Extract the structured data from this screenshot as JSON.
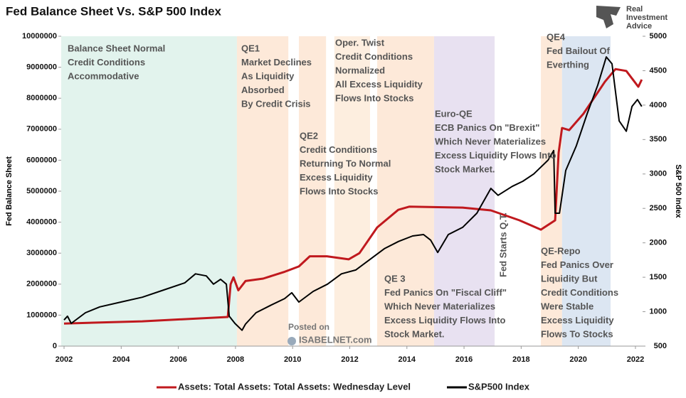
{
  "chart_data": {
    "type": "line",
    "title": "Fed Balance Sheet Vs. S&P 500 Index",
    "logo": [
      "Real",
      "Investment",
      "Advice"
    ],
    "watermark": [
      "Posted on",
      "ISABELNET.com"
    ],
    "ylabel": "Fed Balance Sheet",
    "y2label": "S&P 500 Index",
    "xlim": [
      2001.9,
      2022.25
    ],
    "xticks": [
      2002,
      2004,
      2006,
      2008,
      2010,
      2012,
      2014,
      2016,
      2018,
      2020,
      2022
    ],
    "ylim": [
      0,
      10000000
    ],
    "yticks": [
      0,
      1000000,
      2000000,
      3000000,
      4000000,
      5000000,
      6000000,
      7000000,
      8000000,
      9000000,
      10000000
    ],
    "y2lim": [
      500,
      5000
    ],
    "y2ticks": [
      500,
      1000,
      1500,
      2000,
      2500,
      3000,
      3500,
      4000,
      4500,
      5000
    ],
    "legend": "bottom",
    "regions": [
      {
        "start": 2001.9,
        "end": 2008.05,
        "color": "#e2f3ed"
      },
      {
        "start": 2008.05,
        "end": 2009.85,
        "color": "#fde9d9"
      },
      {
        "start": 2010.22,
        "end": 2011.17,
        "color": "#fde9d9"
      },
      {
        "start": 2011.46,
        "end": 2012.71,
        "color": "#fdeedf"
      },
      {
        "start": 2012.96,
        "end": 2014.95,
        "color": "#fde9d9"
      },
      {
        "start": 2014.95,
        "end": 2017.07,
        "color": "#e8e1f1"
      },
      {
        "start": 2018.69,
        "end": 2019.43,
        "color": "#fde9d9"
      },
      {
        "start": 2019.43,
        "end": 2021.13,
        "color": "#dce6f2"
      }
    ],
    "annotations": [
      [
        "Balance Sheet Normal",
        "Credit Conditions",
        "Accommodative"
      ],
      [
        "QE1",
        "Market Declines",
        "As Liquidity",
        "Absorbed",
        "By Credit Crisis"
      ],
      [
        "QE2",
        "Credit Conditions",
        "Returning To Normal",
        "Excess Liquidity",
        "Flows Into Stocks"
      ],
      [
        "Oper. Twist",
        "Credit Conditions",
        "Normalized",
        "All Excess Liquidity",
        "Flows Into Stocks"
      ],
      [
        "Euro-QE",
        "ECB Panics On \"Brexit\"",
        "Which Never Materializes",
        "Excess Liquidity Flows Into",
        "Stock Market."
      ],
      [
        "QE 3",
        "Fed Panics On \"Fiscal Cliff\"",
        "Which Never Materializes",
        "Excess Liquidity Flows Into",
        "Stock Market."
      ],
      [
        "QE4",
        "Fed Bailout Of",
        "Everthing"
      ],
      [
        "QE-Repo",
        "Fed Panics Over",
        "Liquidity But",
        "Credit Conditions",
        "Were Stable",
        "Excess Liquidity",
        "Flows To Stocks"
      ]
    ],
    "vertical_note": "Fed Starts Q.T.",
    "series": [
      {
        "name": "Assets: Total Assets: Total Assets: Wednesday Level",
        "color": "#c0191e",
        "axis": "y",
        "x": [
          2002,
          2004.74,
          2007.73,
          2007.83,
          2007.93,
          2008.1,
          2008.35,
          2008.97,
          2009.72,
          2010.22,
          2010.6,
          2011.2,
          2011.96,
          2012.34,
          2012.96,
          2013.7,
          2014.08,
          2015.95,
          2016.94,
          2017.94,
          2018.69,
          2019.19,
          2019.31,
          2019.43,
          2019.68,
          2020.18,
          2020.93,
          2021.3,
          2021.68,
          2022.1,
          2022.22
        ],
        "values": [
          730000,
          800000,
          940000,
          2000000,
          2220000,
          1800000,
          2100000,
          2180000,
          2400000,
          2570000,
          2900000,
          2900000,
          2800000,
          3000000,
          3830000,
          4400000,
          4500000,
          4470000,
          4380000,
          4060000,
          3760000,
          4060000,
          6240000,
          7040000,
          6970000,
          7500000,
          8530000,
          8940000,
          8880000,
          8370000,
          8600000
        ]
      },
      {
        "name": "S&P500 Index",
        "color": "#000000",
        "axis": "y2",
        "x": [
          2002,
          2002.12,
          2002.25,
          2002.75,
          2003.25,
          2003.99,
          2004.74,
          2005.49,
          2006.23,
          2006.6,
          2006.98,
          2007.23,
          2007.48,
          2007.68,
          2007.78,
          2007.98,
          2008.23,
          2008.35,
          2008.72,
          2009.22,
          2009.72,
          2009.97,
          2010.22,
          2010.72,
          2011.22,
          2011.71,
          2012.21,
          2012.71,
          2013.21,
          2013.71,
          2014.2,
          2014.58,
          2014.83,
          2015.08,
          2015.45,
          2015.95,
          2016.45,
          2016.94,
          2017.19,
          2017.69,
          2018.06,
          2018.44,
          2018.94,
          2019.14,
          2019.19,
          2019.34,
          2019.56,
          2019.93,
          2020.31,
          2020.68,
          2020.98,
          2021.18,
          2021.43,
          2021.68,
          2021.88,
          2022.07,
          2022.22
        ],
        "values": [
          880,
          935,
          830,
          985,
          1070,
          1140,
          1210,
          1315,
          1420,
          1550,
          1520,
          1400,
          1470,
          1400,
          935,
          830,
          730,
          820,
          985,
          1090,
          1190,
          1275,
          1140,
          1295,
          1400,
          1550,
          1605,
          1760,
          1915,
          2020,
          2100,
          2120,
          2040,
          1860,
          2120,
          2225,
          2430,
          2790,
          2690,
          2820,
          2895,
          3000,
          3200,
          3340,
          2430,
          2430,
          3050,
          3410,
          3875,
          4290,
          4700,
          4600,
          3770,
          3620,
          3980,
          4080,
          3980
        ]
      }
    ]
  }
}
